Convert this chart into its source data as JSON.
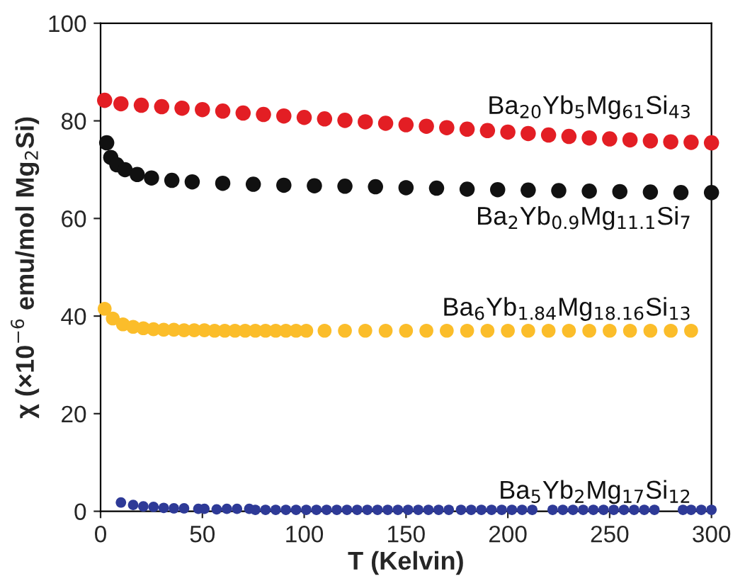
{
  "chart_data": {
    "type": "scatter",
    "xlabel": "T (Kelvin)",
    "ylabel": "χ (×10$^{−6}$ emu/mol Mg$_{2}$Si)",
    "xlim": [
      0,
      300
    ],
    "ylim": [
      0,
      100
    ],
    "xticks": [
      0,
      50,
      100,
      150,
      200,
      250,
      300
    ],
    "yticks": [
      0,
      20,
      40,
      60,
      80,
      100
    ],
    "grid": false,
    "legend": false,
    "marker": "circle",
    "series": [
      {
        "name": "Ba$_{20}$Yb$_{5}$Mg$_{61}$Si$_{43}$",
        "color": "#e31e24",
        "x": [
          2,
          10,
          20,
          30,
          40,
          50,
          60,
          70,
          80,
          90,
          100,
          110,
          120,
          130,
          140,
          150,
          160,
          170,
          180,
          190,
          200,
          210,
          220,
          230,
          240,
          250,
          260,
          270,
          280,
          290,
          300
        ],
        "values": [
          84.2,
          83.5,
          83.2,
          82.9,
          82.6,
          82.3,
          82,
          81.6,
          81.3,
          81,
          80.7,
          80.4,
          80.1,
          79.8,
          79.5,
          79.2,
          78.9,
          78.6,
          78.3,
          78,
          77.7,
          77.4,
          77.1,
          76.8,
          76.5,
          76.3,
          76.1,
          75.9,
          75.7,
          75.6,
          75.5
        ]
      },
      {
        "name": "Ba$_{2}$Yb$_{0.9}$Mg$_{11.1}$Si$_{7}$",
        "color": "#111111",
        "x": [
          3,
          5,
          8,
          12,
          18,
          25,
          35,
          45,
          60,
          75,
          90,
          105,
          120,
          135,
          150,
          165,
          180,
          195,
          210,
          225,
          240,
          255,
          270,
          285,
          300
        ],
        "values": [
          75.5,
          72.5,
          71,
          70,
          69,
          68.3,
          67.8,
          67.5,
          67.2,
          67,
          66.8,
          66.7,
          66.6,
          66.5,
          66.3,
          66.2,
          66,
          65.9,
          65.8,
          65.7,
          65.6,
          65.5,
          65.4,
          65.3,
          65.3
        ]
      },
      {
        "name": "Ba$_{6}$Yb$_{1.84}$Mg$_{18.16}$Si$_{13}$",
        "color": "#fbbd2a",
        "x": [
          2,
          6,
          11,
          16,
          21,
          26,
          31,
          36,
          41,
          46,
          51,
          56,
          61,
          66,
          71,
          76,
          81,
          86,
          91,
          96,
          101,
          110,
          120,
          130,
          140,
          150,
          160,
          170,
          180,
          190,
          200,
          210,
          220,
          230,
          240,
          250,
          260,
          270,
          280,
          290
        ],
        "values": [
          41.5,
          39.5,
          38.3,
          37.8,
          37.5,
          37.3,
          37.2,
          37.2,
          37.1,
          37.1,
          37.1,
          37,
          37,
          37,
          37,
          37,
          37,
          37,
          37,
          37,
          37,
          37,
          37,
          37,
          37,
          37,
          37,
          37,
          37,
          37,
          37,
          37,
          37,
          37,
          37,
          37,
          37,
          37,
          37,
          37
        ]
      },
      {
        "name": "Ba$_{5}$Yb$_{2}$Mg$_{17}$Si$_{12}$",
        "color": "#2e3a97",
        "x": [
          10,
          16,
          21,
          26,
          31,
          36,
          41,
          48,
          51,
          57,
          62,
          67,
          73,
          76,
          81,
          86,
          91,
          96,
          101,
          106,
          111,
          116,
          121,
          126,
          131,
          136,
          141,
          146,
          151,
          156,
          161,
          166,
          171,
          177,
          182,
          187,
          192,
          197,
          202,
          207,
          212,
          222,
          227,
          232,
          237,
          242,
          247,
          252,
          257,
          262,
          267,
          272,
          286,
          290,
          295,
          300
        ],
        "values": [
          1.8,
          1.3,
          1,
          0.9,
          0.7,
          0.6,
          0.6,
          0.5,
          0.5,
          0.4,
          0.5,
          0.5,
          0.5,
          0.3,
          0.3,
          0.3,
          0.3,
          0.3,
          0.3,
          0.3,
          0.3,
          0.3,
          0.3,
          0.3,
          0.3,
          0.3,
          0.3,
          0.3,
          0.3,
          0.3,
          0.3,
          0.3,
          0.3,
          0.3,
          0.3,
          0.3,
          0.3,
          0.3,
          0.3,
          0.3,
          0.3,
          0.3,
          0.3,
          0.3,
          0.3,
          0.3,
          0.3,
          0.3,
          0.3,
          0.3,
          0.3,
          0.3,
          0.3,
          0.3,
          0.3,
          0.3
        ]
      }
    ]
  }
}
